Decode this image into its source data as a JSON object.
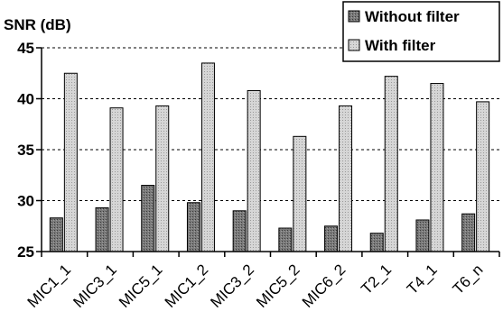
{
  "chart_data": {
    "type": "bar",
    "ylabel": "SNR (dB)",
    "ylim": [
      25,
      45
    ],
    "yticks": [
      25,
      30,
      35,
      40,
      45
    ],
    "grid": "horizontal dashed",
    "legend_position": "top-right",
    "categories": [
      "MIC1_1",
      "MIC3_1",
      "MIC5_1",
      "MIC1_2",
      "MIC3_2",
      "MIC5_2",
      "MIC6_2",
      "T2_1",
      "T4_1",
      "T6_n"
    ],
    "series": [
      {
        "name": "Without filter",
        "color": "#6e6e6e",
        "values": [
          28.3,
          29.3,
          31.5,
          29.8,
          29.0,
          27.3,
          27.5,
          26.8,
          28.1,
          28.7
        ]
      },
      {
        "name": "With filter",
        "color": "#d0d0d0",
        "values": [
          42.5,
          39.1,
          39.3,
          43.5,
          40.8,
          36.3,
          39.3,
          42.2,
          41.5,
          39.7
        ]
      }
    ]
  }
}
